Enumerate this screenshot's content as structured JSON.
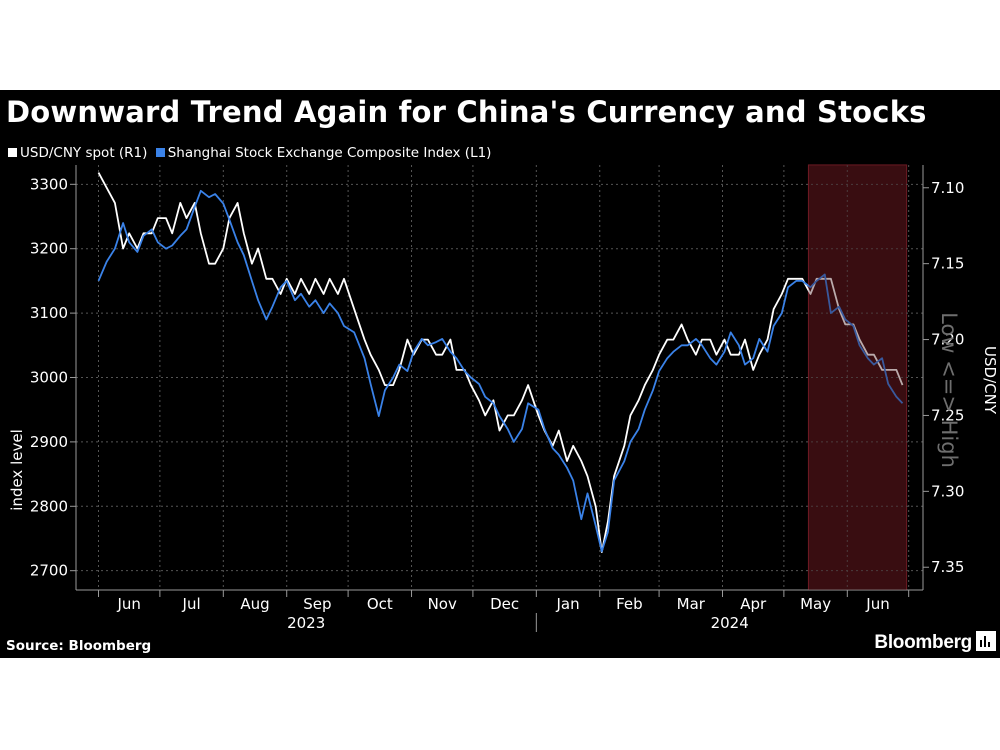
{
  "title": "Downward Trend Again for China's Currency and Stocks",
  "legend": [
    {
      "label": "USD/CNY spot (R1)",
      "color": "#ffffff"
    },
    {
      "label": "Shanghai Stock Exchange Composite Index (L1)",
      "color": "#3a82e8"
    }
  ],
  "source": "Source: Bloomberg",
  "brand": "Bloomberg",
  "colors": {
    "background": "#000000",
    "cny": "#ffffff",
    "shcomp": "#3a82e8",
    "highlight": "#3a0d12"
  },
  "chart_data": {
    "type": "line",
    "x_tick_labels": [
      "Jun",
      "Jul",
      "Aug",
      "Sep",
      "Oct",
      "Nov",
      "Dec",
      "Jan",
      "Feb",
      "Mar",
      "Apr",
      "May",
      "Jun"
    ],
    "year_labels": [
      "2023",
      "2024"
    ],
    "left_axis": {
      "label": "index level",
      "ticks": [
        "2700",
        "2800",
        "2900",
        "3000",
        "3100",
        "3200",
        "3300"
      ],
      "range": [
        2670,
        3330
      ]
    },
    "right_axis": {
      "label": "USD/CNY",
      "ticks": [
        "7.10",
        "7.15",
        "7.20",
        "7.25",
        "7.30",
        "7.35"
      ],
      "range": [
        7.365,
        7.085
      ],
      "inverted": true
    },
    "annotation": "Low <=> High",
    "highlight_range": [
      "2024-05-13",
      "2024-06-30"
    ],
    "grid": true,
    "legend_position": "top-left",
    "series": [
      {
        "name": "USD/CNY spot (R1)",
        "axis": "right",
        "points": [
          [
            "2023-06-01",
            7.09
          ],
          [
            "2023-06-05",
            7.1
          ],
          [
            "2023-06-09",
            7.11
          ],
          [
            "2023-06-13",
            7.14
          ],
          [
            "2023-06-16",
            7.13
          ],
          [
            "2023-06-20",
            7.14
          ],
          [
            "2023-06-23",
            7.13
          ],
          [
            "2023-06-27",
            7.13
          ],
          [
            "2023-06-30",
            7.12
          ],
          [
            "2023-07-04",
            7.12
          ],
          [
            "2023-07-07",
            7.13
          ],
          [
            "2023-07-11",
            7.11
          ],
          [
            "2023-07-14",
            7.12
          ],
          [
            "2023-07-18",
            7.11
          ],
          [
            "2023-07-21",
            7.13
          ],
          [
            "2023-07-25",
            7.15
          ],
          [
            "2023-07-28",
            7.15
          ],
          [
            "2023-08-01",
            7.14
          ],
          [
            "2023-08-04",
            7.12
          ],
          [
            "2023-08-08",
            7.11
          ],
          [
            "2023-08-11",
            7.13
          ],
          [
            "2023-08-15",
            7.15
          ],
          [
            "2023-08-18",
            7.14
          ],
          [
            "2023-08-22",
            7.16
          ],
          [
            "2023-08-25",
            7.16
          ],
          [
            "2023-08-29",
            7.17
          ],
          [
            "2023-09-01",
            7.16
          ],
          [
            "2023-09-05",
            7.17
          ],
          [
            "2023-09-08",
            7.16
          ],
          [
            "2023-09-12",
            7.17
          ],
          [
            "2023-09-15",
            7.16
          ],
          [
            "2023-09-19",
            7.17
          ],
          [
            "2023-09-22",
            7.16
          ],
          [
            "2023-09-26",
            7.17
          ],
          [
            "2023-09-29",
            7.16
          ],
          [
            "2023-10-04",
            7.18
          ],
          [
            "2023-10-09",
            7.2
          ],
          [
            "2023-10-12",
            7.21
          ],
          [
            "2023-10-16",
            7.22
          ],
          [
            "2023-10-19",
            7.23
          ],
          [
            "2023-10-23",
            7.23
          ],
          [
            "2023-10-26",
            7.22
          ],
          [
            "2023-10-30",
            7.2
          ],
          [
            "2023-11-02",
            7.21
          ],
          [
            "2023-11-06",
            7.2
          ],
          [
            "2023-11-09",
            7.2
          ],
          [
            "2023-11-13",
            7.21
          ],
          [
            "2023-11-16",
            7.21
          ],
          [
            "2023-11-20",
            7.2
          ],
          [
            "2023-11-23",
            7.22
          ],
          [
            "2023-11-27",
            7.22
          ],
          [
            "2023-11-30",
            7.23
          ],
          [
            "2023-12-04",
            7.24
          ],
          [
            "2023-12-07",
            7.25
          ],
          [
            "2023-12-11",
            7.24
          ],
          [
            "2023-12-14",
            7.26
          ],
          [
            "2023-12-18",
            7.25
          ],
          [
            "2023-12-21",
            7.25
          ],
          [
            "2023-12-25",
            7.24
          ],
          [
            "2023-12-28",
            7.23
          ],
          [
            "2024-01-02",
            7.25
          ],
          [
            "2024-01-05",
            7.26
          ],
          [
            "2024-01-09",
            7.27
          ],
          [
            "2024-01-12",
            7.26
          ],
          [
            "2024-01-16",
            7.28
          ],
          [
            "2024-01-19",
            7.27
          ],
          [
            "2024-01-23",
            7.28
          ],
          [
            "2024-01-26",
            7.29
          ],
          [
            "2024-01-30",
            7.31
          ],
          [
            "2024-02-02",
            7.34
          ],
          [
            "2024-02-05",
            7.32
          ],
          [
            "2024-02-08",
            7.29
          ],
          [
            "2024-02-13",
            7.27
          ],
          [
            "2024-02-16",
            7.25
          ],
          [
            "2024-02-20",
            7.24
          ],
          [
            "2024-02-23",
            7.23
          ],
          [
            "2024-02-27",
            7.22
          ],
          [
            "2024-03-01",
            7.21
          ],
          [
            "2024-03-05",
            7.2
          ],
          [
            "2024-03-08",
            7.2
          ],
          [
            "2024-03-12",
            7.19
          ],
          [
            "2024-03-15",
            7.2
          ],
          [
            "2024-03-19",
            7.21
          ],
          [
            "2024-03-22",
            7.2
          ],
          [
            "2024-03-26",
            7.2
          ],
          [
            "2024-03-29",
            7.21
          ],
          [
            "2024-04-02",
            7.2
          ],
          [
            "2024-04-05",
            7.21
          ],
          [
            "2024-04-09",
            7.21
          ],
          [
            "2024-04-12",
            7.2
          ],
          [
            "2024-04-16",
            7.22
          ],
          [
            "2024-04-19",
            7.21
          ],
          [
            "2024-04-23",
            7.2
          ],
          [
            "2024-04-26",
            7.18
          ],
          [
            "2024-04-30",
            7.17
          ],
          [
            "2024-05-03",
            7.16
          ],
          [
            "2024-05-07",
            7.16
          ],
          [
            "2024-05-10",
            7.16
          ],
          [
            "2024-05-14",
            7.17
          ],
          [
            "2024-05-17",
            7.16
          ],
          [
            "2024-05-21",
            7.16
          ],
          [
            "2024-05-24",
            7.16
          ],
          [
            "2024-05-28",
            7.18
          ],
          [
            "2024-05-31",
            7.19
          ],
          [
            "2024-06-04",
            7.19
          ],
          [
            "2024-06-07",
            7.2
          ],
          [
            "2024-06-11",
            7.21
          ],
          [
            "2024-06-14",
            7.21
          ],
          [
            "2024-06-18",
            7.22
          ],
          [
            "2024-06-21",
            7.22
          ],
          [
            "2024-06-25",
            7.22
          ],
          [
            "2024-06-28",
            7.23
          ]
        ]
      },
      {
        "name": "Shanghai Stock Exchange Composite Index (L1)",
        "axis": "left",
        "points": [
          [
            "2023-06-01",
            3150
          ],
          [
            "2023-06-05",
            3180
          ],
          [
            "2023-06-09",
            3200
          ],
          [
            "2023-06-13",
            3240
          ],
          [
            "2023-06-16",
            3210
          ],
          [
            "2023-06-20",
            3195
          ],
          [
            "2023-06-23",
            3220
          ],
          [
            "2023-06-27",
            3230
          ],
          [
            "2023-06-30",
            3210
          ],
          [
            "2023-07-04",
            3200
          ],
          [
            "2023-07-07",
            3205
          ],
          [
            "2023-07-11",
            3220
          ],
          [
            "2023-07-14",
            3230
          ],
          [
            "2023-07-18",
            3265
          ],
          [
            "2023-07-21",
            3290
          ],
          [
            "2023-07-25",
            3280
          ],
          [
            "2023-07-28",
            3285
          ],
          [
            "2023-08-01",
            3270
          ],
          [
            "2023-08-04",
            3245
          ],
          [
            "2023-08-08",
            3210
          ],
          [
            "2023-08-11",
            3190
          ],
          [
            "2023-08-15",
            3150
          ],
          [
            "2023-08-18",
            3120
          ],
          [
            "2023-08-22",
            3090
          ],
          [
            "2023-08-25",
            3110
          ],
          [
            "2023-08-29",
            3140
          ],
          [
            "2023-09-01",
            3150
          ],
          [
            "2023-09-05",
            3120
          ],
          [
            "2023-09-08",
            3130
          ],
          [
            "2023-09-12",
            3110
          ],
          [
            "2023-09-15",
            3120
          ],
          [
            "2023-09-19",
            3100
          ],
          [
            "2023-09-22",
            3115
          ],
          [
            "2023-09-26",
            3100
          ],
          [
            "2023-09-29",
            3080
          ],
          [
            "2023-10-04",
            3070
          ],
          [
            "2023-10-09",
            3030
          ],
          [
            "2023-10-12",
            2990
          ],
          [
            "2023-10-16",
            2940
          ],
          [
            "2023-10-19",
            2980
          ],
          [
            "2023-10-23",
            3000
          ],
          [
            "2023-10-26",
            3020
          ],
          [
            "2023-10-30",
            3010
          ],
          [
            "2023-11-02",
            3040
          ],
          [
            "2023-11-06",
            3060
          ],
          [
            "2023-11-09",
            3050
          ],
          [
            "2023-11-13",
            3055
          ],
          [
            "2023-11-16",
            3060
          ],
          [
            "2023-11-20",
            3040
          ],
          [
            "2023-11-23",
            3030
          ],
          [
            "2023-11-27",
            3010
          ],
          [
            "2023-11-30",
            3000
          ],
          [
            "2023-12-04",
            2990
          ],
          [
            "2023-12-07",
            2970
          ],
          [
            "2023-12-11",
            2960
          ],
          [
            "2023-12-14",
            2940
          ],
          [
            "2023-12-18",
            2920
          ],
          [
            "2023-12-21",
            2900
          ],
          [
            "2023-12-25",
            2920
          ],
          [
            "2023-12-28",
            2960
          ],
          [
            "2024-01-02",
            2950
          ],
          [
            "2024-01-05",
            2920
          ],
          [
            "2024-01-09",
            2890
          ],
          [
            "2024-01-12",
            2880
          ],
          [
            "2024-01-16",
            2860
          ],
          [
            "2024-01-19",
            2840
          ],
          [
            "2024-01-23",
            2780
          ],
          [
            "2024-01-26",
            2820
          ],
          [
            "2024-01-30",
            2770
          ],
          [
            "2024-02-02",
            2730
          ],
          [
            "2024-02-05",
            2760
          ],
          [
            "2024-02-08",
            2840
          ],
          [
            "2024-02-13",
            2870
          ],
          [
            "2024-02-16",
            2900
          ],
          [
            "2024-02-20",
            2920
          ],
          [
            "2024-02-23",
            2950
          ],
          [
            "2024-02-27",
            2980
          ],
          [
            "2024-03-01",
            3010
          ],
          [
            "2024-03-05",
            3030
          ],
          [
            "2024-03-08",
            3040
          ],
          [
            "2024-03-12",
            3050
          ],
          [
            "2024-03-15",
            3050
          ],
          [
            "2024-03-19",
            3060
          ],
          [
            "2024-03-22",
            3050
          ],
          [
            "2024-03-26",
            3030
          ],
          [
            "2024-03-29",
            3020
          ],
          [
            "2024-04-02",
            3040
          ],
          [
            "2024-04-05",
            3070
          ],
          [
            "2024-04-09",
            3050
          ],
          [
            "2024-04-12",
            3020
          ],
          [
            "2024-04-16",
            3030
          ],
          [
            "2024-04-19",
            3060
          ],
          [
            "2024-04-23",
            3040
          ],
          [
            "2024-04-26",
            3080
          ],
          [
            "2024-04-30",
            3100
          ],
          [
            "2024-05-03",
            3140
          ],
          [
            "2024-05-07",
            3150
          ],
          [
            "2024-05-10",
            3150
          ],
          [
            "2024-05-14",
            3140
          ],
          [
            "2024-05-17",
            3150
          ],
          [
            "2024-05-21",
            3160
          ],
          [
            "2024-05-24",
            3100
          ],
          [
            "2024-05-28",
            3110
          ],
          [
            "2024-05-31",
            3090
          ],
          [
            "2024-06-04",
            3080
          ],
          [
            "2024-06-07",
            3050
          ],
          [
            "2024-06-11",
            3030
          ],
          [
            "2024-06-14",
            3020
          ],
          [
            "2024-06-18",
            3030
          ],
          [
            "2024-06-21",
            2990
          ],
          [
            "2024-06-25",
            2970
          ],
          [
            "2024-06-28",
            2960
          ]
        ]
      }
    ]
  }
}
